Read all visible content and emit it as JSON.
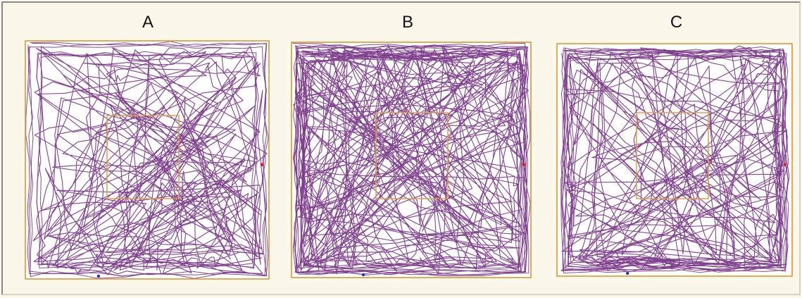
{
  "panels": [
    {
      "label": "A",
      "coverage": "whole-arena"
    },
    {
      "label": "B",
      "coverage": "periphery-heavy"
    },
    {
      "label": "C",
      "coverage": "wall-hugging"
    }
  ],
  "colors": {
    "background": "#fbf7ea",
    "arena_fill": "#ffffff",
    "zone_border": "#e0a040",
    "track": "#7b3a8a",
    "start_marker": "#d02020",
    "end_marker": "#2030c0"
  }
}
